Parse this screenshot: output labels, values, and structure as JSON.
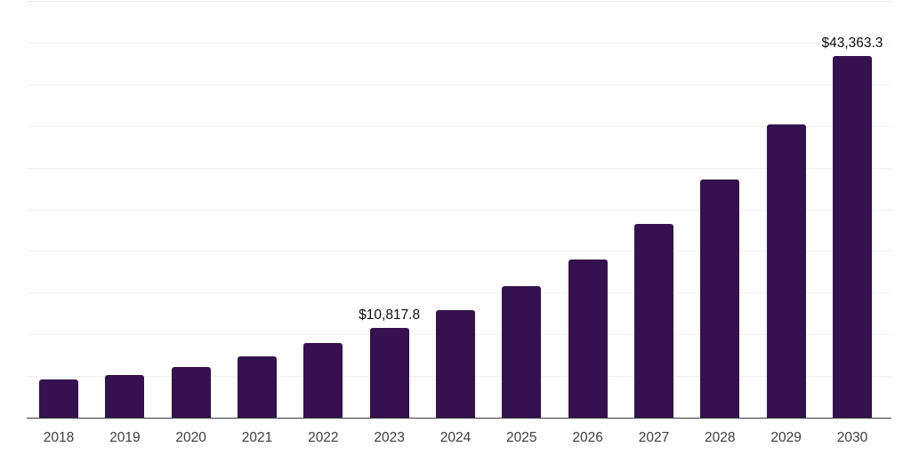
{
  "chart_data": {
    "type": "bar",
    "title": "",
    "xlabel": "",
    "ylabel": "",
    "categories": [
      "2018",
      "2019",
      "2020",
      "2021",
      "2022",
      "2023",
      "2024",
      "2025",
      "2026",
      "2027",
      "2028",
      "2029",
      "2030"
    ],
    "values": [
      4600,
      5100,
      6100,
      7400,
      9000,
      10817.8,
      12900,
      15800,
      19000,
      23200,
      28600,
      35200,
      43363.3
    ],
    "labeled_points": [
      {
        "category": "2023",
        "label": "$10,817.8"
      },
      {
        "category": "2030",
        "label": "$43,363.3"
      }
    ],
    "ylim": [
      0,
      50000
    ],
    "gridline_interval": 5000,
    "grid": "horizontal",
    "legend": "none",
    "colors": {
      "bar": "#35114F",
      "axis_line": "#3a3a3a",
      "gridline": "#f1f1f1",
      "top_gridline": "#e8e8e8",
      "tick_label": "#3d3d3d",
      "data_label": "#0f0f0f",
      "background": "#ffffff"
    }
  }
}
